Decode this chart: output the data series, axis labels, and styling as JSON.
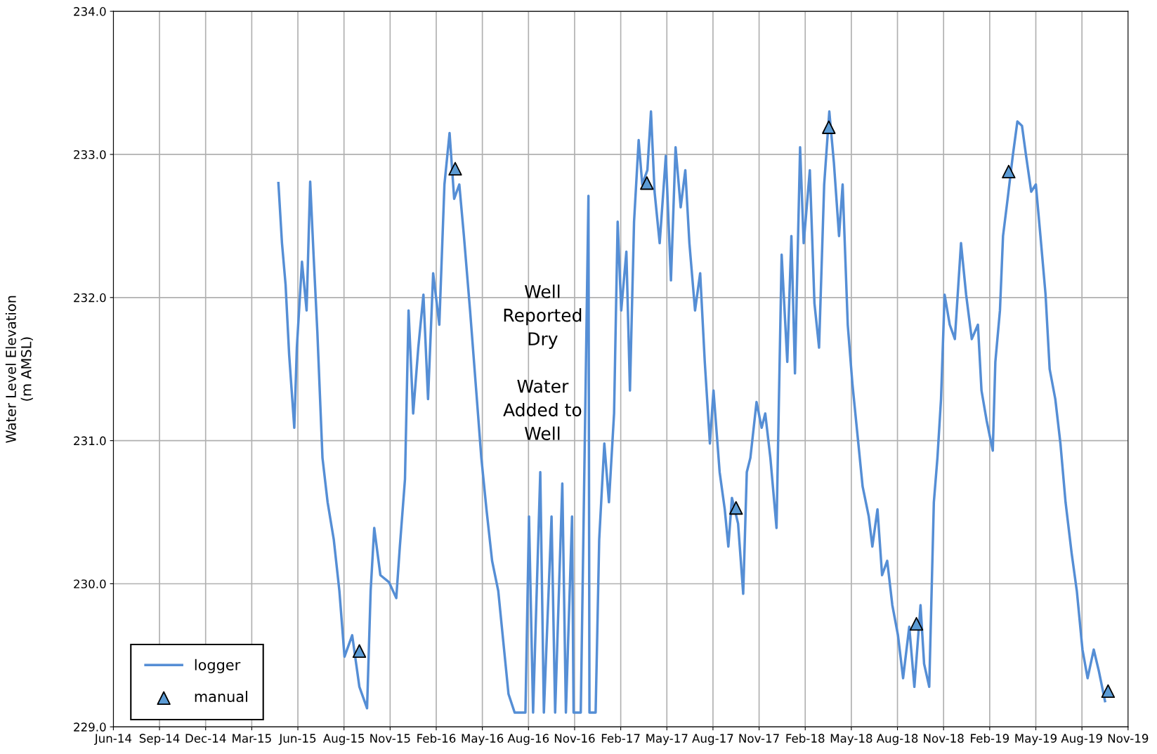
{
  "chart_data": {
    "type": "line",
    "ylabel": "Water Level Elevation\n(m AMSL)",
    "annotations": [
      "Well\nReported\nDry\n\nWater\nAdded to\nWell"
    ],
    "xlim": [
      "2014-06-06",
      "2019-11-07"
    ],
    "xticks": [
      {
        "value": "2014-06-06",
        "label": "Jun-14"
      },
      {
        "value": "2014-09-04",
        "label": "Sep-14"
      },
      {
        "value": "2014-12-03",
        "label": "Dec-14"
      },
      {
        "value": "2015-03-03",
        "label": "Mar-15"
      },
      {
        "value": "2015-06-01",
        "label": "Jun-15"
      },
      {
        "value": "2015-08-30",
        "label": "Aug-15"
      },
      {
        "value": "2015-11-28",
        "label": "Nov-15"
      },
      {
        "value": "2016-02-26",
        "label": "Feb-16"
      },
      {
        "value": "2016-05-26",
        "label": "May-16"
      },
      {
        "value": "2016-08-24",
        "label": "Aug-16"
      },
      {
        "value": "2016-11-22",
        "label": "Nov-16"
      },
      {
        "value": "2017-02-20",
        "label": "Feb-17"
      },
      {
        "value": "2017-05-21",
        "label": "May-17"
      },
      {
        "value": "2017-08-19",
        "label": "Aug-17"
      },
      {
        "value": "2017-11-17",
        "label": "Nov-17"
      },
      {
        "value": "2018-02-15",
        "label": "Feb-18"
      },
      {
        "value": "2018-05-16",
        "label": "May-18"
      },
      {
        "value": "2018-08-14",
        "label": "Aug-18"
      },
      {
        "value": "2018-11-12",
        "label": "Nov-18"
      },
      {
        "value": "2019-02-10",
        "label": "Feb-19"
      },
      {
        "value": "2019-05-11",
        "label": "May-19"
      },
      {
        "value": "2019-08-09",
        "label": "Aug-19"
      },
      {
        "value": "2019-11-07",
        "label": "Nov-19"
      }
    ],
    "ylim": [
      229,
      234
    ],
    "yticks": [
      {
        "value": 229,
        "label": "229.0"
      },
      {
        "value": 230,
        "label": "230.0"
      },
      {
        "value": 231,
        "label": "231.0"
      },
      {
        "value": 232,
        "label": "232.0"
      },
      {
        "value": 233,
        "label": "233.0"
      },
      {
        "value": 234,
        "label": "234.0"
      }
    ],
    "grid": true,
    "legend": "bottom left",
    "series": [
      {
        "name": "logger",
        "color": "#558ed5",
        "marker": "none",
        "line_style": "solid",
        "x": [
          "2015-04-24",
          "2015-05-01",
          "2015-05-08",
          "2015-05-15",
          "2015-05-25",
          "2015-05-30",
          "2015-06-09",
          "2015-06-18",
          "2015-06-25",
          "2015-07-02",
          "2015-07-09",
          "2015-07-19",
          "2015-07-29",
          "2015-08-10",
          "2015-08-21",
          "2015-08-31",
          "2015-09-15",
          "2015-09-29",
          "2015-10-14",
          "2015-10-21",
          "2015-10-28",
          "2015-11-09",
          "2015-11-26",
          "2015-12-10",
          "2015-12-17",
          "2015-12-27",
          "2016-01-03",
          "2016-01-12",
          "2016-01-22",
          "2016-02-01",
          "2016-02-10",
          "2016-02-20",
          "2016-03-03",
          "2016-03-13",
          "2016-03-23",
          "2016-04-01",
          "2016-04-11",
          "2016-04-20",
          "2016-05-02",
          "2016-05-14",
          "2016-05-24",
          "2016-06-03",
          "2016-06-14",
          "2016-06-26",
          "2016-07-06",
          "2016-07-16",
          "2016-07-28",
          "2016-08-18",
          "2016-08-25",
          "2016-09-02",
          "2016-09-16",
          "2016-09-23",
          "2016-10-08",
          "2016-10-15",
          "2016-10-29",
          "2016-11-05",
          "2016-11-17",
          "2016-11-20",
          "2016-12-04",
          "2016-12-19",
          "2016-12-21",
          "2017-01-02",
          "2017-01-09",
          "2017-01-19",
          "2017-01-28",
          "2017-02-07",
          "2017-02-14",
          "2017-02-21",
          "2017-03-03",
          "2017-03-10",
          "2017-03-18",
          "2017-03-27",
          "2017-04-03",
          "2017-04-13",
          "2017-04-20",
          "2017-04-27",
          "2017-05-07",
          "2017-05-19",
          "2017-05-29",
          "2017-06-07",
          "2017-06-17",
          "2017-06-26",
          "2017-07-04",
          "2017-07-15",
          "2017-07-25",
          "2017-08-03",
          "2017-08-13",
          "2017-08-20",
          "2017-09-01",
          "2017-09-11",
          "2017-09-18",
          "2017-09-25",
          "2017-10-07",
          "2017-10-17",
          "2017-10-24",
          "2017-10-31",
          "2017-11-12",
          "2017-11-22",
          "2017-11-29",
          "2017-12-09",
          "2017-12-21",
          "2017-12-31",
          "2018-01-11",
          "2018-01-19",
          "2018-01-26",
          "2018-02-05",
          "2018-02-12",
          "2018-02-24",
          "2018-03-05",
          "2018-03-14",
          "2018-03-24",
          "2018-04-03",
          "2018-04-12",
          "2018-04-22",
          "2018-04-29",
          "2018-05-09",
          "2018-05-18",
          "2018-05-28",
          "2018-06-07",
          "2018-06-19",
          "2018-06-26",
          "2018-07-06",
          "2018-07-15",
          "2018-07-25",
          "2018-08-04",
          "2018-08-15",
          "2018-08-25",
          "2018-09-06",
          "2018-09-16",
          "2018-09-28",
          "2018-10-05",
          "2018-10-15",
          "2018-10-24",
          "2018-10-31",
          "2018-11-07",
          "2018-11-14",
          "2018-11-24",
          "2018-12-04",
          "2018-12-16",
          "2018-12-26",
          "2019-01-06",
          "2019-01-18",
          "2019-01-25",
          "2019-02-04",
          "2019-02-16",
          "2019-02-21",
          "2019-03-02",
          "2019-03-08",
          "2019-03-17",
          "2019-03-27",
          "2019-04-05",
          "2019-04-14",
          "2019-04-22",
          "2019-05-02",
          "2019-05-11",
          "2019-05-20",
          "2019-05-30",
          "2019-06-07",
          "2019-06-18",
          "2019-06-28",
          "2019-07-08",
          "2019-07-20",
          "2019-07-30",
          "2019-08-10",
          "2019-08-20",
          "2019-09-01",
          "2019-09-11",
          "2019-09-23"
        ],
        "values": [
          232.8,
          232.38,
          232.09,
          231.6,
          231.09,
          231.65,
          232.25,
          231.91,
          232.81,
          232.27,
          231.76,
          230.88,
          230.57,
          230.31,
          229.95,
          229.49,
          229.64,
          229.28,
          229.13,
          229.95,
          230.39,
          230.06,
          230.01,
          229.9,
          230.26,
          230.73,
          231.91,
          231.19,
          231.65,
          232.02,
          231.29,
          232.17,
          231.81,
          232.79,
          233.15,
          232.69,
          232.79,
          232.43,
          231.91,
          231.35,
          230.88,
          230.52,
          230.16,
          229.95,
          229.59,
          229.23,
          229.1,
          229.1,
          230.47,
          229.1,
          230.78,
          229.1,
          230.47,
          229.1,
          230.7,
          229.1,
          230.47,
          229.1,
          229.1,
          232.71,
          229.1,
          229.1,
          230.31,
          230.98,
          230.57,
          231.19,
          232.53,
          231.91,
          232.32,
          231.35,
          232.53,
          233.1,
          232.79,
          232.89,
          233.3,
          232.74,
          232.38,
          232.99,
          232.12,
          233.05,
          232.63,
          232.89,
          232.38,
          231.91,
          232.17,
          231.55,
          230.98,
          231.35,
          230.78,
          230.52,
          230.26,
          230.6,
          230.42,
          229.93,
          230.78,
          230.88,
          231.27,
          231.09,
          231.19,
          230.88,
          230.39,
          232.3,
          231.55,
          232.43,
          231.47,
          233.05,
          232.38,
          232.89,
          231.96,
          231.65,
          232.79,
          233.3,
          232.94,
          232.43,
          232.79,
          231.81,
          231.4,
          231.04,
          230.68,
          230.47,
          230.26,
          230.52,
          230.06,
          230.16,
          229.85,
          229.64,
          229.34,
          229.7,
          229.28,
          229.85,
          229.44,
          229.28,
          230.57,
          230.88,
          231.29,
          232.02,
          231.81,
          231.71,
          232.38,
          232.02,
          231.71,
          231.81,
          231.35,
          231.14,
          230.93,
          231.55,
          231.91,
          232.43,
          232.69,
          232.99,
          233.23,
          233.2,
          232.99,
          232.74,
          232.79,
          232.43,
          232.02,
          231.5,
          231.29,
          230.98,
          230.57,
          230.21,
          229.95,
          229.54,
          229.34,
          229.54,
          229.39,
          229.18
        ]
      },
      {
        "name": "manual",
        "type": "scatter",
        "color": "#5b9bd5",
        "marker": "triangle",
        "x": [
          "2015-09-29",
          "2016-04-03",
          "2017-04-12",
          "2017-10-03",
          "2018-04-02",
          "2018-09-20",
          "2019-03-19",
          "2019-09-29"
        ],
        "values": [
          229.53,
          232.9,
          232.8,
          230.53,
          233.19,
          229.72,
          232.88,
          229.25
        ]
      }
    ]
  }
}
